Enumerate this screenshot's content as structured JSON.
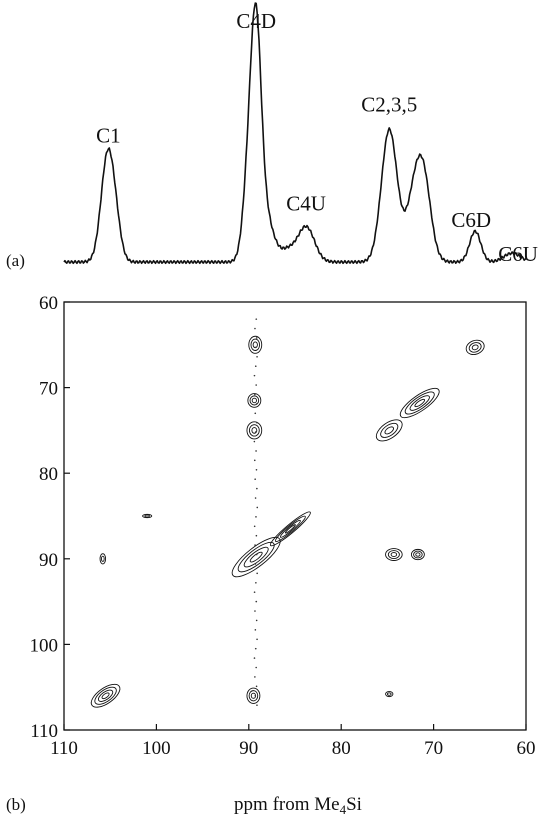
{
  "chart_data": [
    {
      "type": "line",
      "panel_label": "(a)",
      "x_range_ppm": [
        110,
        60
      ],
      "x_reversed": true,
      "peaks": [
        {
          "label": "C1",
          "ppm": 105.2,
          "height": 0.48
        },
        {
          "label": "C4D",
          "ppm": 89.2,
          "height": 1.0
        },
        {
          "label": "C4U",
          "ppm": 83.8,
          "height": 0.17
        },
        {
          "label": "C2,3,5",
          "ppm": 74.8,
          "height": 0.62
        },
        {
          "label": "C6D",
          "ppm": 65.5,
          "height": 0.14
        },
        {
          "label": "C6U",
          "ppm": 61.5,
          "height": 0.04
        }
      ]
    },
    {
      "type": "contour",
      "panel_label": "(b)",
      "xlabel": "ppm from Me",
      "xlabel_sub": "4",
      "xlabel_tail": "Si",
      "xlim": [
        110,
        60
      ],
      "ylim": [
        60,
        110
      ],
      "x_ticks": [
        110,
        100,
        90,
        80,
        70,
        60
      ],
      "y_ticks": [
        60,
        70,
        80,
        90,
        100,
        110
      ],
      "x_tick_labels": [
        "110",
        "100",
        "90",
        "80",
        "70",
        "60"
      ],
      "y_tick_labels": [
        "60",
        "70",
        "80",
        "90",
        "100",
        "110"
      ],
      "grid": false,
      "blobs": [
        {
          "x": 105.5,
          "y": 106.0,
          "rx": 1.8,
          "ry": 0.9,
          "rot": -35
        },
        {
          "x": 105.8,
          "y": 90.0,
          "rx": 0.3,
          "ry": 0.6,
          "rot": 0
        },
        {
          "x": 101.0,
          "y": 85.0,
          "rx": 0.5,
          "ry": 0.2,
          "rot": 0
        },
        {
          "x": 89.3,
          "y": 65.0,
          "rx": 0.7,
          "ry": 1.0,
          "rot": 0
        },
        {
          "x": 89.4,
          "y": 71.5,
          "rx": 0.7,
          "ry": 0.8,
          "rot": 0
        },
        {
          "x": 89.4,
          "y": 75.0,
          "rx": 0.8,
          "ry": 1.0,
          "rot": 0
        },
        {
          "x": 89.2,
          "y": 89.8,
          "rx": 3.2,
          "ry": 1.1,
          "rot": -38
        },
        {
          "x": 85.5,
          "y": 86.5,
          "rx": 2.8,
          "ry": 0.5,
          "rot": -40
        },
        {
          "x": 89.5,
          "y": 106.0,
          "rx": 0.7,
          "ry": 0.9,
          "rot": 0
        },
        {
          "x": 74.8,
          "y": 75.0,
          "rx": 1.6,
          "ry": 0.9,
          "rot": -35
        },
        {
          "x": 71.5,
          "y": 71.8,
          "rx": 2.5,
          "ry": 0.9,
          "rot": -35
        },
        {
          "x": 74.3,
          "y": 89.5,
          "rx": 0.9,
          "ry": 0.7,
          "rot": 0
        },
        {
          "x": 71.7,
          "y": 89.5,
          "rx": 0.7,
          "ry": 0.6,
          "rot": 0
        },
        {
          "x": 65.5,
          "y": 65.3,
          "rx": 1.0,
          "ry": 0.8,
          "rot": -20
        },
        {
          "x": 74.8,
          "y": 105.8,
          "rx": 0.4,
          "ry": 0.3,
          "rot": 0
        }
      ]
    }
  ]
}
